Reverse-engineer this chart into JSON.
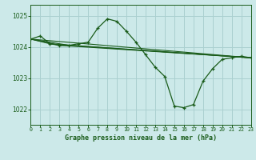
{
  "title": "Graphe pression niveau de la mer (hPa)",
  "bg_color": "#cce9e9",
  "grid_color": "#aad0d0",
  "line_color": "#1a5c1a",
  "xlim": [
    0,
    23
  ],
  "ylim": [
    1021.5,
    1025.35
  ],
  "yticks": [
    1022,
    1023,
    1024,
    1025
  ],
  "xticks": [
    0,
    1,
    2,
    3,
    4,
    5,
    6,
    7,
    8,
    9,
    10,
    11,
    12,
    13,
    14,
    15,
    16,
    17,
    18,
    19,
    20,
    21,
    22,
    23
  ],
  "series": [
    {
      "x": [
        0,
        1,
        2,
        3,
        4,
        5,
        6,
        7,
        8,
        9,
        10,
        11,
        12,
        13,
        14,
        15,
        16,
        17,
        18,
        19,
        20,
        21,
        22,
        23
      ],
      "y": [
        1024.25,
        1024.35,
        1024.1,
        1024.05,
        1024.05,
        1024.1,
        1024.15,
        1024.6,
        1024.9,
        1024.82,
        1024.5,
        1024.15,
        1023.75,
        1023.35,
        1023.05,
        1022.1,
        1022.05,
        1022.15,
        1022.9,
        1023.3,
        1023.6,
        1023.65,
        1023.7,
        1023.65
      ]
    },
    {
      "x": [
        0,
        23
      ],
      "y": [
        1024.25,
        1023.65
      ]
    },
    {
      "x": [
        0,
        23
      ],
      "y": [
        1024.25,
        1023.65
      ]
    },
    {
      "x": [
        0,
        23
      ],
      "y": [
        1024.25,
        1023.65
      ]
    },
    {
      "x": [
        0,
        23
      ],
      "y": [
        1024.25,
        1023.65
      ]
    }
  ],
  "straight_lines": [
    {
      "x": [
        0,
        23
      ],
      "y": [
        1024.25,
        1023.65
      ]
    },
    {
      "x": [
        0,
        4,
        23
      ],
      "y": [
        1024.25,
        1024.05,
        1023.65
      ]
    },
    {
      "x": [
        0,
        3,
        23
      ],
      "y": [
        1024.25,
        1024.05,
        1023.65
      ]
    },
    {
      "x": [
        0,
        2,
        23
      ],
      "y": [
        1024.25,
        1024.1,
        1023.65
      ]
    }
  ]
}
